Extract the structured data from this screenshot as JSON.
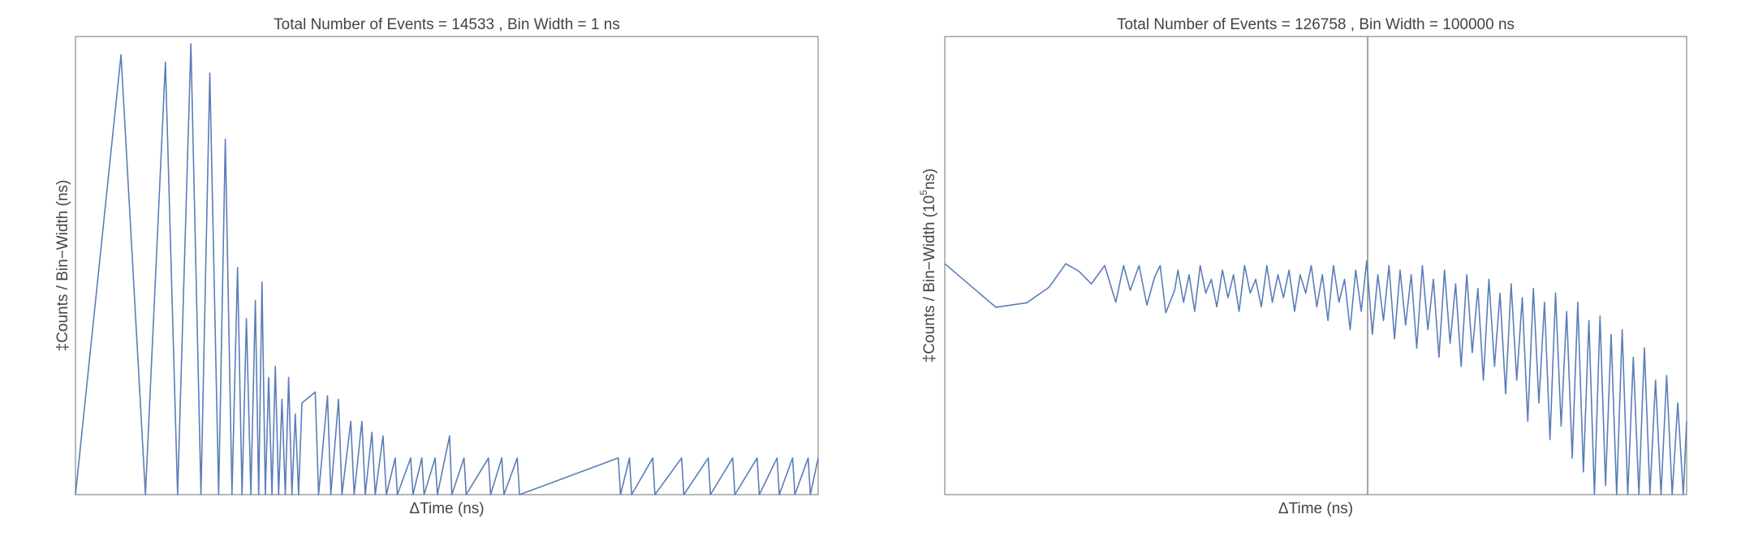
{
  "chart_data": [
    {
      "type": "line",
      "title": "Total Number of Events = 14533 , Bin Width = 1 ns",
      "xlabel": "ΔTime (ns)",
      "ylabel": [
        "‡Counts / Bin−Width (ns)"
      ],
      "color": "#5b7db8",
      "xlim": [
        0,
        669
      ],
      "ylim": [
        0,
        12.5
      ],
      "x": [
        0,
        41,
        63,
        81,
        92,
        104,
        113,
        121,
        129,
        135,
        141,
        146,
        150,
        154,
        158,
        162,
        165,
        168,
        171,
        174,
        177,
        180,
        183,
        186,
        189,
        192,
        195,
        198,
        201,
        204,
        216,
        219,
        227,
        230,
        237,
        240,
        248,
        251,
        258,
        261,
        267,
        270,
        277,
        280,
        288,
        290,
        302,
        304,
        312,
        314,
        324,
        326,
        337,
        339,
        350,
        352,
        372,
        374,
        384,
        386,
        398,
        400,
        489,
        491,
        499,
        501,
        520,
        522,
        546,
        548,
        570,
        572,
        592,
        594,
        614,
        616,
        632,
        634,
        646,
        648,
        660,
        662,
        669
      ],
      "values": [
        0,
        12,
        0,
        11.8,
        0,
        12.3,
        0,
        11.5,
        0,
        9.7,
        0,
        6.2,
        0,
        4.8,
        0,
        5.3,
        0,
        5.8,
        0,
        3.2,
        0,
        3.5,
        0,
        2.6,
        0,
        3.2,
        0,
        2.2,
        0,
        2.5,
        2.8,
        0,
        2.7,
        0,
        2.6,
        0,
        2,
        0,
        2,
        0,
        1.7,
        0,
        1.6,
        0,
        1,
        0,
        1,
        0,
        1,
        0,
        1,
        0,
        1.6,
        0,
        1,
        0,
        1,
        0,
        1,
        0,
        1,
        0,
        1,
        0,
        1,
        0,
        1,
        0,
        1,
        0,
        1,
        0,
        1,
        0,
        1,
        0,
        1,
        0,
        1,
        0,
        1,
        0,
        1
      ]
    },
    {
      "type": "line",
      "title": "Total Number of Events = 126758 , Bin Width = 100000 ns",
      "xlabel": "ΔTime (ns)",
      "ylabel": [
        "‡Counts / Bin−Width (10",
        "5",
        "ns)"
      ],
      "color": "#5b7db8",
      "xlim": [
        0,
        668
      ],
      "ylim": [
        0,
        100
      ],
      "x": [
        0,
        46,
        74,
        94,
        109,
        121,
        132,
        144,
        154,
        161,
        167,
        175,
        182,
        189,
        194,
        199,
        207,
        210,
        215,
        220,
        225,
        230,
        235,
        240,
        245,
        250,
        255,
        260,
        265,
        270,
        275,
        280,
        285,
        290,
        295,
        300,
        305,
        310,
        315,
        320,
        325,
        330,
        335,
        340,
        345,
        350,
        355,
        360,
        365,
        370,
        375,
        380,
        385,
        390,
        395,
        400,
        405,
        410,
        415,
        420,
        425,
        430,
        435,
        440,
        445,
        450,
        455,
        460,
        465,
        470,
        475,
        480,
        485,
        490,
        495,
        500,
        505,
        510,
        515,
        520,
        525,
        530,
        535,
        540,
        545,
        550,
        555,
        560,
        565,
        570,
        575,
        580,
        585,
        590,
        595,
        600,
        605,
        610,
        615,
        620,
        625,
        630,
        635,
        640,
        645,
        650,
        655,
        660,
        665,
        668
      ],
      "values": [
        50.4,
        40.9,
        41.9,
        45.3,
        50.4,
        48.7,
        46,
        50,
        42,
        50,
        44.6,
        50,
        41.4,
        47.5,
        50,
        39.7,
        44.6,
        49,
        42,
        48,
        40,
        50,
        44,
        47,
        41,
        49,
        43,
        48,
        40,
        50,
        44,
        47,
        41,
        50,
        42,
        48,
        43,
        49,
        40,
        48,
        44,
        50,
        41,
        48,
        38,
        50,
        42,
        47,
        36,
        49,
        40,
        51,
        35,
        48,
        38,
        50,
        34,
        49,
        37,
        48,
        32,
        50,
        36,
        47,
        30,
        49,
        33,
        46,
        28,
        48,
        31,
        45,
        25,
        47,
        28,
        44,
        22,
        46,
        25,
        43,
        16,
        45,
        20,
        42,
        12,
        44,
        15,
        40,
        8,
        42,
        5,
        38,
        0,
        39,
        2,
        35,
        0,
        36,
        0,
        30,
        0,
        32,
        0,
        25,
        0,
        26,
        0,
        20,
        0,
        16
      ]
    }
  ]
}
